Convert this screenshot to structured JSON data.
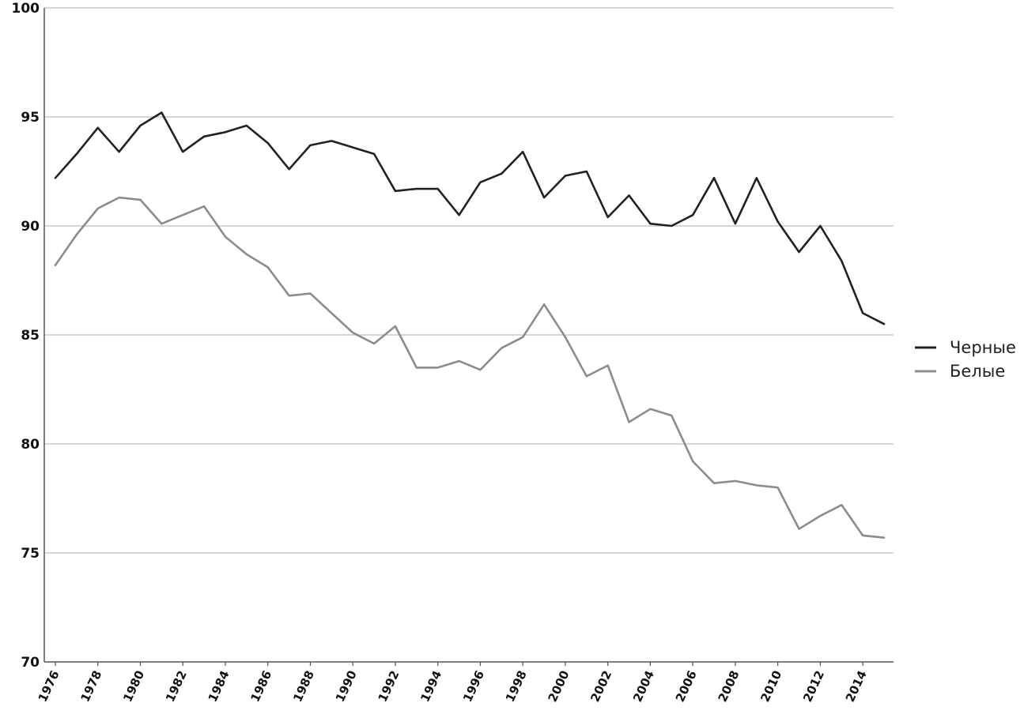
{
  "chart_data": {
    "type": "line",
    "ylim": [
      70,
      100
    ],
    "yticks": [
      "70",
      "75",
      "80",
      "85",
      "90",
      "95",
      "100"
    ],
    "xlim": [
      1976,
      2015
    ],
    "xticks": [
      "1976",
      "1978",
      "1980",
      "1982",
      "1984",
      "1986",
      "1988",
      "1990",
      "1992",
      "1994",
      "1996",
      "1998",
      "2000",
      "2002",
      "2004",
      "2006",
      "2008",
      "2010",
      "2012",
      "2014"
    ],
    "grid": true,
    "legend_position": "right",
    "x": [
      1976,
      1977,
      1978,
      1979,
      1980,
      1981,
      1982,
      1983,
      1984,
      1985,
      1986,
      1987,
      1988,
      1989,
      1990,
      1991,
      1992,
      1993,
      1994,
      1995,
      1996,
      1997,
      1998,
      1999,
      2000,
      2001,
      2002,
      2003,
      2004,
      2005,
      2006,
      2007,
      2008,
      2009,
      2010,
      2011,
      2012,
      2013,
      2014,
      2015
    ],
    "series": [
      {
        "name": "Черные",
        "color": "#222222",
        "values": [
          92.2,
          93.3,
          94.5,
          93.4,
          94.6,
          95.2,
          93.4,
          94.1,
          94.3,
          94.6,
          93.8,
          92.6,
          93.7,
          93.9,
          93.6,
          93.3,
          91.6,
          91.7,
          91.7,
          90.5,
          92.0,
          92.4,
          93.4,
          91.3,
          92.3,
          92.5,
          90.4,
          91.4,
          90.1,
          90.0,
          90.5,
          92.2,
          90.1,
          92.2,
          90.2,
          88.8,
          90.0,
          88.4,
          86.0,
          85.5
        ]
      },
      {
        "name": "Белые",
        "color": "#8c8c8c",
        "values": [
          88.2,
          89.6,
          90.8,
          91.3,
          91.2,
          90.1,
          90.5,
          90.9,
          89.5,
          88.7,
          88.1,
          86.8,
          86.9,
          86.0,
          85.1,
          84.6,
          85.4,
          83.5,
          83.5,
          83.8,
          83.4,
          84.4,
          84.9,
          86.4,
          84.9,
          83.1,
          83.6,
          81.0,
          81.6,
          81.3,
          79.2,
          78.2,
          78.3,
          78.1,
          78.0,
          76.1,
          76.7,
          77.2,
          75.8,
          75.7
        ]
      }
    ]
  }
}
